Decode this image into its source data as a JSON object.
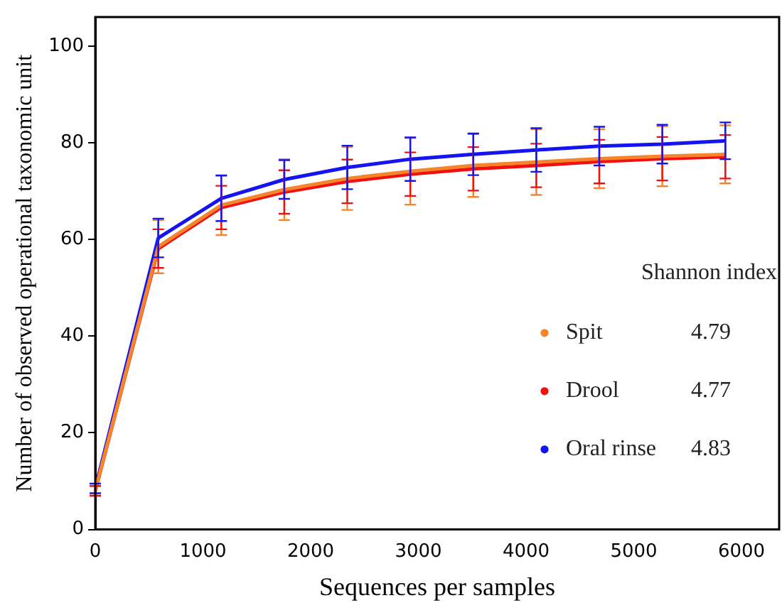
{
  "chart_data": {
    "type": "line",
    "xlabel": "Sequences per samples",
    "ylabel": "Number of observed operational taxonomic unit",
    "legend_title": "Shannon index",
    "legend": "right",
    "marker": "none",
    "line_style": "solid",
    "grid": false,
    "x": [
      0,
      585,
      1170,
      1755,
      2340,
      2925,
      3510,
      4095,
      4680,
      5265,
      5850
    ],
    "xlim": [
      0,
      6350
    ],
    "xticks": [
      0,
      1000,
      2000,
      3000,
      4000,
      5000,
      6000
    ],
    "ylim": [
      0,
      106
    ],
    "yticks": [
      0,
      20,
      40,
      60,
      80,
      100
    ],
    "series": [
      {
        "name": "Spit",
        "color": "#f5842a",
        "values": [
          8,
          58.5,
          67.1,
          70.3,
          72.6,
          74.1,
          75.3,
          76.0,
          76.7,
          77.2,
          77.6
        ],
        "errors": [
          1,
          5.5,
          6.2,
          6.3,
          6.5,
          6.9,
          6.5,
          6.8,
          6.1,
          6.2,
          6
        ]
      },
      {
        "name": "Drool",
        "color": "#f01010",
        "values": [
          8,
          58.1,
          66.6,
          69.8,
          72.0,
          73.5,
          74.6,
          75.3,
          76.1,
          76.7,
          77.1
        ],
        "errors": [
          1,
          4,
          4.5,
          4.5,
          4.5,
          4.5,
          4.5,
          4.5,
          4.5,
          4.5,
          4.5
        ]
      },
      {
        "name": "Oral rinse",
        "color": "#1414f0",
        "values": [
          8.5,
          60.3,
          68.5,
          72.4,
          74.9,
          76.6,
          77.6,
          78.5,
          79.3,
          79.7,
          80.4
        ],
        "errors": [
          1,
          4,
          4.7,
          4,
          4.5,
          4.5,
          4.3,
          4.5,
          4,
          4,
          3.8
        ]
      }
    ],
    "annotations": [
      "4.79",
      "4.77",
      "4.83"
    ]
  }
}
